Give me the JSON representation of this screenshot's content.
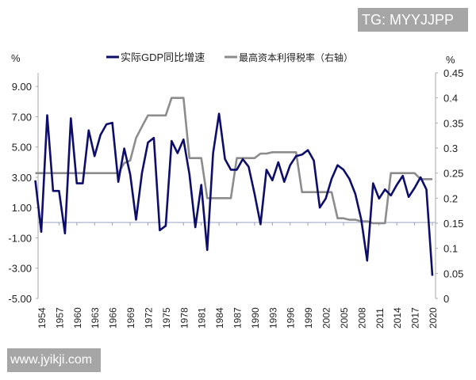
{
  "watermarks": {
    "top": "TG: MYYJJPP",
    "bottom": "www.jyikji.com"
  },
  "chart_data": {
    "type": "line",
    "title": "",
    "left_axis": {
      "unit_label": "%",
      "ylim": [
        -5,
        9.9
      ],
      "ticks": [
        -5,
        -3,
        -1,
        1,
        3,
        5,
        7,
        9
      ],
      "tick_labels": [
        "-5.00",
        "-3.00",
        "-1.00",
        "1.00",
        "3.00",
        "5.00",
        "7.00",
        "9.00"
      ]
    },
    "right_axis": {
      "unit_label": "%",
      "ylim": [
        0,
        0.45
      ],
      "ticks": [
        0,
        0.05,
        0.1,
        0.15,
        0.2,
        0.25,
        0.3,
        0.35,
        0.4,
        0.45
      ],
      "tick_labels": [
        "0",
        "0.05",
        "0.1",
        "0.15",
        "0.2",
        "0.25",
        "0.3",
        "0.35",
        "0.4",
        "0.45"
      ]
    },
    "x_tick_labels": [
      "1954",
      "1957",
      "1960",
      "1963",
      "1966",
      "1969",
      "1972",
      "1975",
      "1978",
      "1981",
      "1984",
      "1987",
      "1990",
      "1993",
      "1996",
      "1999",
      "2002",
      "2005",
      "2008",
      "2011",
      "2014",
      "2017",
      "2020"
    ],
    "x": [
      1953,
      1954,
      1955,
      1956,
      1957,
      1958,
      1959,
      1960,
      1961,
      1962,
      1963,
      1964,
      1965,
      1966,
      1967,
      1968,
      1969,
      1970,
      1971,
      1972,
      1973,
      1974,
      1975,
      1976,
      1977,
      1978,
      1979,
      1980,
      1981,
      1982,
      1983,
      1984,
      1985,
      1986,
      1987,
      1988,
      1989,
      1990,
      1991,
      1992,
      1993,
      1994,
      1995,
      1996,
      1997,
      1998,
      1999,
      2000,
      2001,
      2002,
      2003,
      2004,
      2005,
      2006,
      2007,
      2008,
      2009,
      2010,
      2011,
      2012,
      2013,
      2014,
      2015,
      2016,
      2017,
      2018,
      2019,
      2020
    ],
    "legend_position": "top",
    "grid": false,
    "series": [
      {
        "name": "实际GDP同比增速",
        "axis": "left",
        "color": "#0d0d6b",
        "values": [
          2.8,
          -0.6,
          7.1,
          2.1,
          2.1,
          -0.7,
          6.9,
          2.6,
          2.6,
          6.1,
          4.4,
          5.8,
          6.5,
          6.6,
          2.7,
          4.9,
          3.2,
          0.2,
          3.3,
          5.3,
          5.6,
          -0.5,
          -0.2,
          5.4,
          4.6,
          5.5,
          3.2,
          -0.3,
          2.5,
          -1.8,
          4.6,
          7.2,
          4.2,
          3.5,
          3.5,
          4.2,
          3.7,
          1.9,
          -0.1,
          3.5,
          2.8,
          4.0,
          2.7,
          3.8,
          4.4,
          4.5,
          4.8,
          4.1,
          1.0,
          1.6,
          2.9,
          3.8,
          3.5,
          2.9,
          1.9,
          0.2,
          -2.5,
          2.6,
          1.6,
          2.2,
          1.8,
          2.5,
          3.1,
          1.7,
          2.3,
          3.0,
          2.2,
          -3.5
        ]
      },
      {
        "name": "最高资本利得税率（右轴）",
        "axis": "right",
        "color": "#8c8c8c",
        "values": [
          0.25,
          0.25,
          0.25,
          0.25,
          0.25,
          0.25,
          0.25,
          0.25,
          0.25,
          0.25,
          0.25,
          0.25,
          0.25,
          0.25,
          0.25,
          0.27,
          0.275,
          0.32,
          0.343,
          0.365,
          0.365,
          0.365,
          0.365,
          0.4,
          0.4,
          0.4,
          0.28,
          0.28,
          0.28,
          0.2,
          0.2,
          0.2,
          0.2,
          0.2,
          0.28,
          0.28,
          0.28,
          0.28,
          0.289,
          0.289,
          0.2917,
          0.2917,
          0.2917,
          0.2917,
          0.2917,
          0.212,
          0.212,
          0.212,
          0.212,
          0.212,
          0.212,
          0.16,
          0.16,
          0.157,
          0.157,
          0.154,
          0.154,
          0.15,
          0.15,
          0.15,
          0.25,
          0.25,
          0.25,
          0.25,
          0.25,
          0.238,
          0.238,
          0.238
        ]
      }
    ]
  }
}
